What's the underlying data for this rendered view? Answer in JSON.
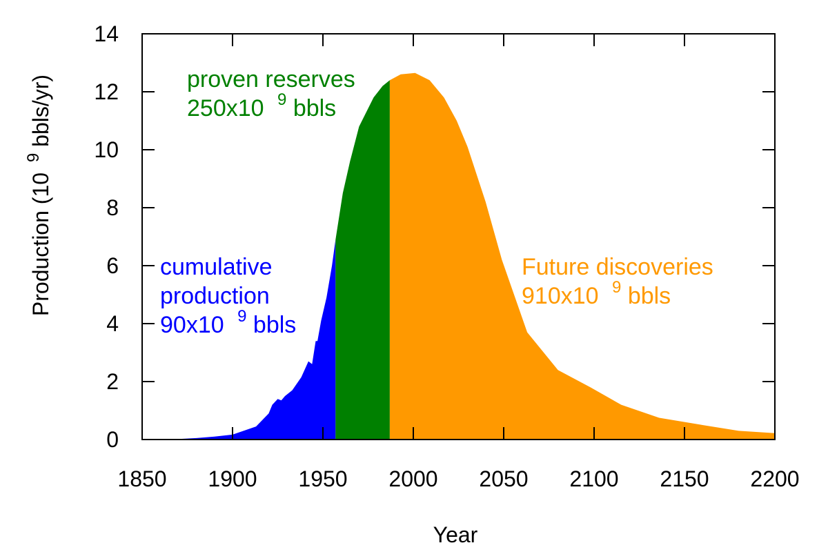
{
  "chart_data": {
    "type": "area",
    "xlabel": "Year",
    "ylabel": {
      "prefix": "Production (10",
      "exponent": "9",
      "suffix": " bbls/yr)"
    },
    "xlim": [
      1850,
      2200
    ],
    "ylim": [
      0,
      14
    ],
    "x_ticks": [
      "1850",
      "1900",
      "1950",
      "2000",
      "2050",
      "2100",
      "2150",
      "2200"
    ],
    "y_ticks": [
      "0",
      "2",
      "4",
      "6",
      "8",
      "10",
      "12",
      "14"
    ],
    "grid": false,
    "legend": "none",
    "colors": {
      "cumulative": "#0000ff",
      "proven": "#008000",
      "future": "#ff9900",
      "axis": "#000000"
    },
    "series": [
      {
        "name": "cumulative production",
        "x": [
          1850,
          1870,
          1880,
          1890,
          1900,
          1913,
          1920,
          1922,
          1925,
          1927,
          1929,
          1933,
          1938,
          1942,
          1944,
          1946,
          1947,
          1949,
          1952,
          1955,
          1957
        ],
        "y": [
          0.0,
          0.02,
          0.05,
          0.1,
          0.17,
          0.45,
          0.9,
          1.2,
          1.4,
          1.35,
          1.5,
          1.7,
          2.15,
          2.7,
          2.6,
          3.4,
          3.4,
          4.1,
          4.9,
          6.0,
          6.9
        ]
      },
      {
        "name": "proven reserves",
        "x": [
          1957,
          1961,
          1965,
          1970,
          1974,
          1978,
          1983,
          1987
        ],
        "y": [
          6.9,
          8.5,
          9.6,
          10.8,
          11.3,
          11.8,
          12.2,
          12.4
        ]
      },
      {
        "name": "Future discoveries",
        "x": [
          1987,
          1993,
          2001,
          2009,
          2017,
          2024,
          2030,
          2040,
          2049,
          2063,
          2080,
          2098,
          2115,
          2136,
          2160,
          2180,
          2200
        ],
        "y": [
          12.4,
          12.6,
          12.65,
          12.4,
          11.8,
          11.0,
          10.1,
          8.2,
          6.2,
          3.7,
          2.4,
          1.8,
          1.2,
          0.75,
          0.5,
          0.3,
          0.22
        ]
      }
    ],
    "annotations": [
      {
        "key": "cumulative",
        "lines": [
          "cumulative",
          "production"
        ],
        "value_prefix": "90x10",
        "exponent": "9",
        "value_suffix": " bbls"
      },
      {
        "key": "proven",
        "lines": [
          "proven reserves"
        ],
        "value_prefix": "250x10",
        "exponent": "9",
        "value_suffix": " bbls"
      },
      {
        "key": "future",
        "lines": [
          "Future discoveries"
        ],
        "value_prefix": "910x10",
        "exponent": "9",
        "value_suffix": " bbls"
      }
    ]
  }
}
